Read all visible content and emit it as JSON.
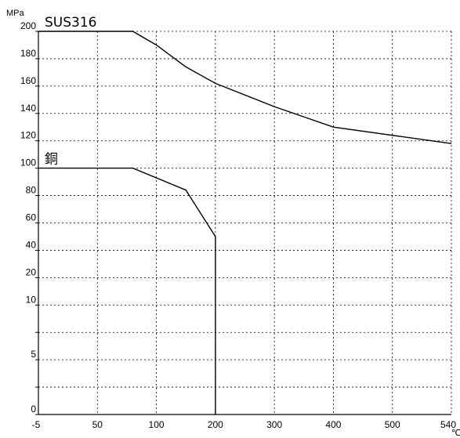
{
  "chart_data": {
    "type": "line",
    "y_unit": "MPa",
    "x_unit": "℃",
    "x_ticks": [
      {
        "value": -5,
        "label": "-5"
      },
      {
        "value": 50,
        "label": "50"
      },
      {
        "value": 100,
        "label": "100"
      },
      {
        "value": 200,
        "label": "200"
      },
      {
        "value": 300,
        "label": "300"
      },
      {
        "value": 400,
        "label": "400"
      },
      {
        "value": 500,
        "label": "500"
      },
      {
        "value": 540,
        "label": "540"
      }
    ],
    "y_ticks": [
      {
        "value": 0,
        "label": "0"
      },
      {
        "value": 5,
        "label": "5"
      },
      {
        "value": 10,
        "label": "10"
      },
      {
        "value": 20,
        "label": "20"
      },
      {
        "value": 40,
        "label": "40"
      },
      {
        "value": 60,
        "label": "60"
      },
      {
        "value": 80,
        "label": "80"
      },
      {
        "value": 100,
        "label": "100"
      },
      {
        "value": 120,
        "label": "120"
      },
      {
        "value": 140,
        "label": "140"
      },
      {
        "value": 160,
        "label": "160"
      },
      {
        "value": 180,
        "label": "180"
      },
      {
        "value": 200,
        "label": "200"
      }
    ],
    "y_minor_ticks": [
      2.5,
      7.5
    ],
    "grid": true,
    "series": [
      {
        "name": "SUS316",
        "points": [
          [
            -5,
            200
          ],
          [
            80,
            200
          ],
          [
            100,
            190
          ],
          [
            150,
            174
          ],
          [
            200,
            162
          ],
          [
            300,
            145
          ],
          [
            400,
            130
          ],
          [
            540,
            118
          ]
        ]
      },
      {
        "name": "銅",
        "points": [
          [
            -5,
            100
          ],
          [
            80,
            100
          ],
          [
            150,
            84
          ],
          [
            200,
            50
          ],
          [
            200,
            0
          ]
        ]
      }
    ]
  }
}
